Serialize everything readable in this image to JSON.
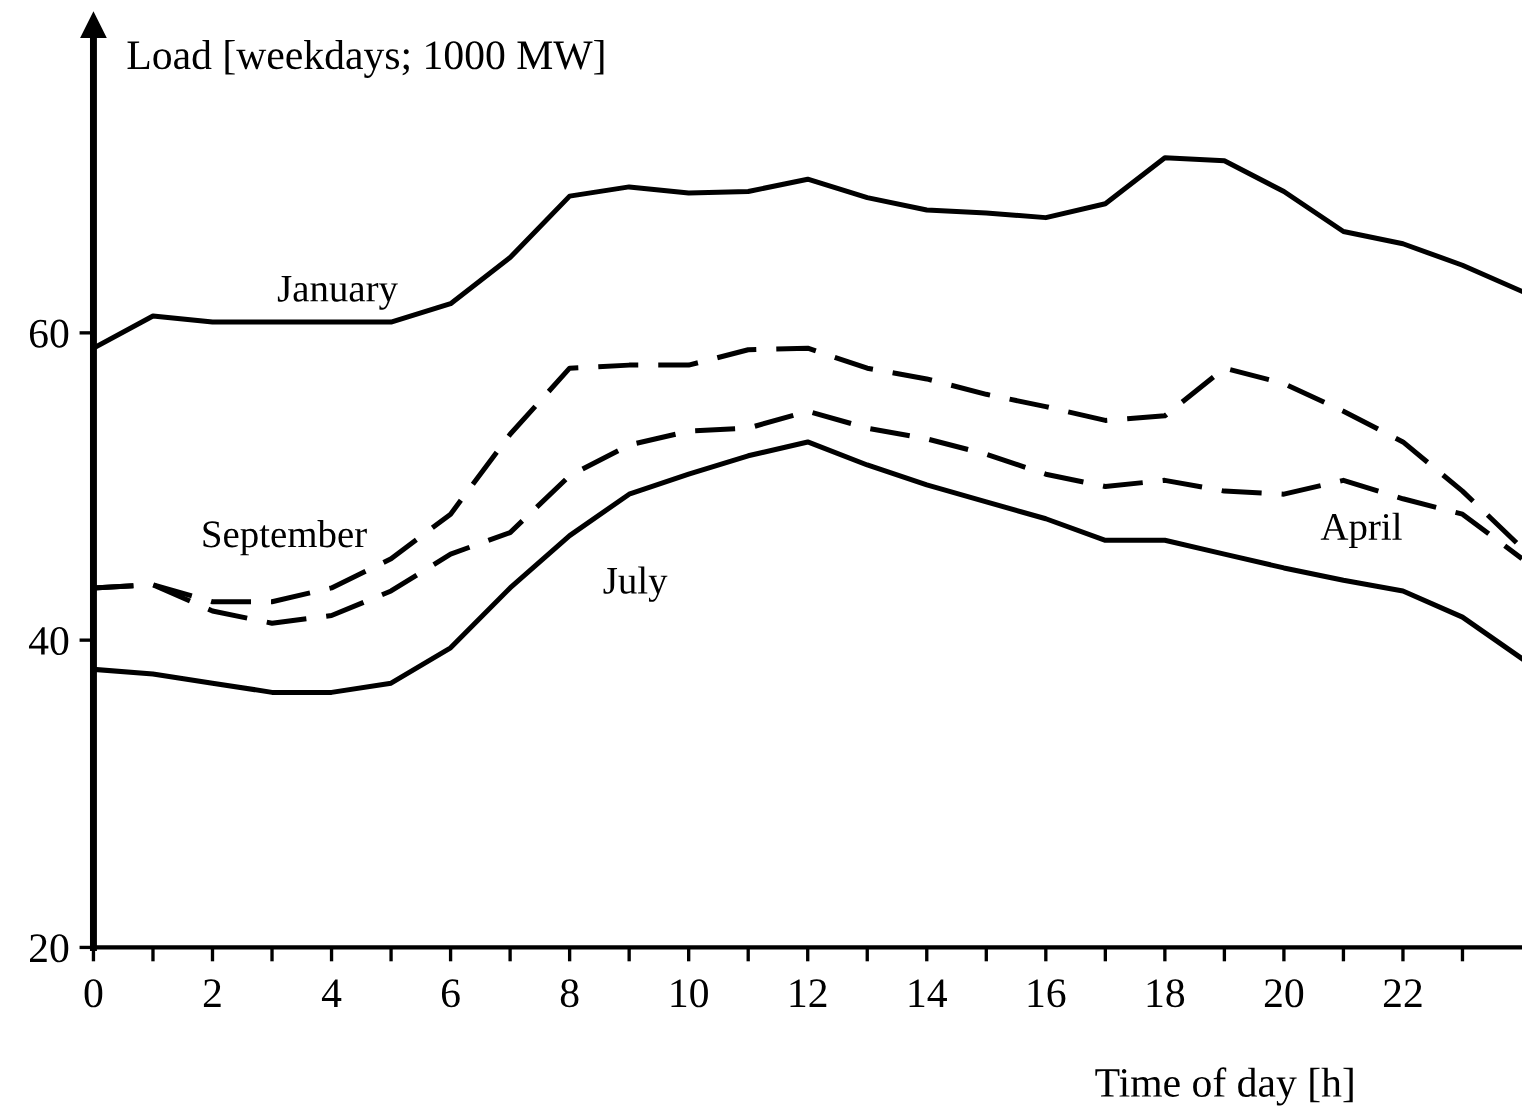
{
  "chart_data": {
    "type": "line",
    "xlabel": "Time of day [h]",
    "ylabel": "Load [weekdays; 1000 MW]",
    "x": [
      0,
      1,
      2,
      3,
      4,
      5,
      6,
      7,
      8,
      9,
      10,
      11,
      12,
      13,
      14,
      15,
      16,
      17,
      18,
      19,
      20,
      21,
      22,
      23,
      24
    ],
    "series": [
      {
        "name": "January",
        "color": "#000000",
        "line_style": "solid",
        "values": [
          59.0,
          61.1,
          60.7,
          60.7,
          60.7,
          60.7,
          61.9,
          64.9,
          68.9,
          69.5,
          69.1,
          69.2,
          70.0,
          68.8,
          68.0,
          67.8,
          67.5,
          68.4,
          71.4,
          71.2,
          69.2,
          66.6,
          65.8,
          64.4,
          62.7
        ]
      },
      {
        "name": "September",
        "color": "#000000",
        "line_style": "dashed",
        "values": [
          43.4,
          43.6,
          42.5,
          42.5,
          43.4,
          45.3,
          48.2,
          53.4,
          57.7,
          57.9,
          57.9,
          58.9,
          59.0,
          57.7,
          57.0,
          56.0,
          55.2,
          54.3,
          54.6,
          57.7,
          56.7,
          54.9,
          52.9,
          49.7,
          46.0
        ]
      },
      {
        "name": "April",
        "color": "#000000",
        "line_style": "dashed",
        "values": [
          43.4,
          43.6,
          41.9,
          41.1,
          41.6,
          43.2,
          45.6,
          47.0,
          50.7,
          52.7,
          53.6,
          53.8,
          54.9,
          53.8,
          53.1,
          52.1,
          50.8,
          50.0,
          50.4,
          49.7,
          49.5,
          50.4,
          49.2,
          48.2,
          45.3
        ]
      },
      {
        "name": "July",
        "color": "#000000",
        "line_style": "solid",
        "values": [
          38.1,
          37.8,
          37.2,
          36.6,
          36.6,
          37.2,
          39.5,
          43.4,
          46.8,
          49.5,
          50.8,
          52.0,
          52.9,
          51.4,
          50.1,
          49.0,
          47.9,
          46.5,
          46.5,
          45.6,
          44.7,
          43.9,
          43.2,
          41.5,
          38.8
        ]
      }
    ],
    "xlim": [
      0,
      24
    ],
    "xticks": [
      0,
      {
        "value": 1,
        "label": null
      },
      2,
      {
        "value": 3,
        "label": null
      },
      4,
      {
        "value": 5,
        "label": null
      },
      6,
      {
        "value": 7,
        "label": null
      },
      8,
      {
        "value": 9,
        "label": null
      },
      10,
      {
        "value": 11,
        "label": null
      },
      12,
      {
        "value": 13,
        "label": null
      },
      14,
      {
        "value": 15,
        "label": null
      },
      16,
      {
        "value": 17,
        "label": null
      },
      18,
      {
        "value": 19,
        "label": null
      },
      20,
      {
        "value": 21,
        "label": null
      },
      22,
      {
        "value": 23,
        "label": null
      }
    ],
    "ylim": [
      20,
      80
    ],
    "yticks": [
      20,
      40,
      60
    ],
    "grid": false,
    "legend": false
  }
}
